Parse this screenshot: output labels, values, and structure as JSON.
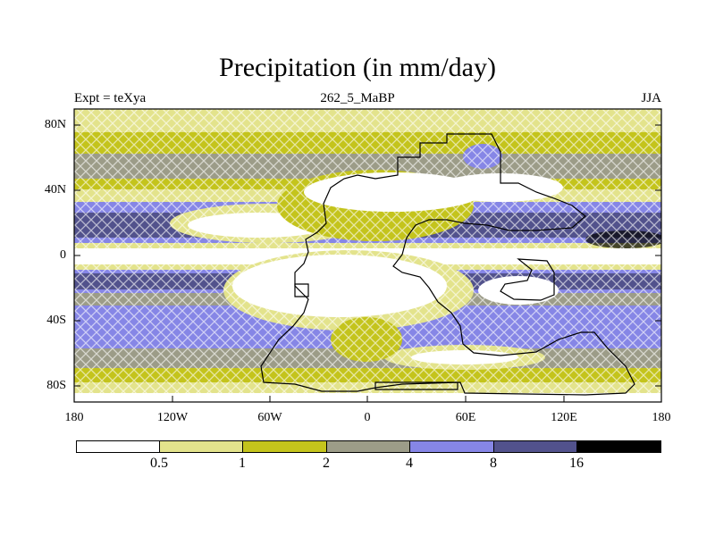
{
  "title": "Precipitation (in mm/day)",
  "expt_label": "Expt = teXya",
  "run_label": "262_5_MaBP",
  "season_label": "JJA",
  "lat_ticks": [
    "80N",
    "40N",
    "0",
    "40S",
    "80S"
  ],
  "lon_ticks": [
    "180",
    "120W",
    "60W",
    "0",
    "60E",
    "120E",
    "180"
  ],
  "legend": {
    "colors": [
      "#ffffff",
      "#e3e38c",
      "#c4c41c",
      "#9c9c88",
      "#8686e6",
      "#52528c",
      "#000000"
    ],
    "labels": [
      "0.5",
      "1",
      "2",
      "4",
      "8",
      "16"
    ]
  }
}
